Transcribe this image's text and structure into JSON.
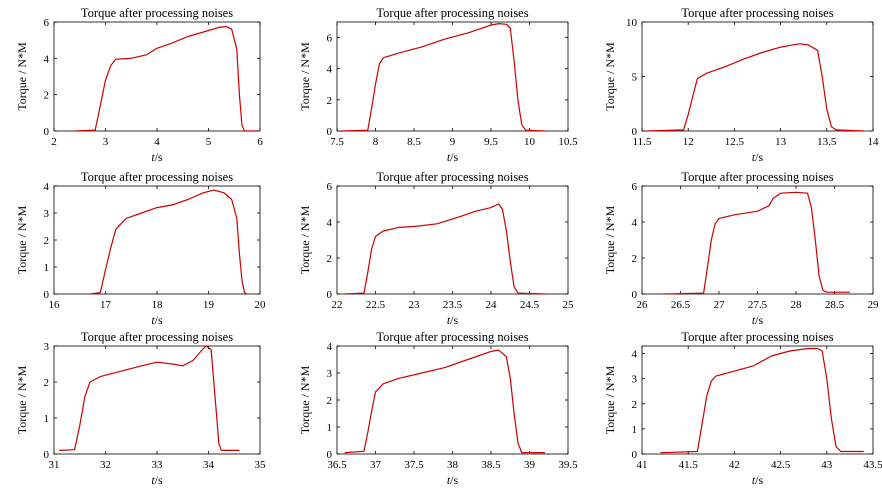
{
  "chart_data": [
    {
      "type": "line",
      "title": "Torque after processing noises",
      "xlabel_italic": "t",
      "xlabel_unit": "/s",
      "ylabel": "Torque / N*M",
      "xlim": [
        2,
        6
      ],
      "ylim": [
        0,
        6
      ],
      "xticks": [
        2,
        3,
        4,
        5,
        6
      ],
      "yticks": [
        0,
        2,
        4,
        6
      ],
      "color": "#cc0000",
      "series": [
        {
          "x": [
            2.4,
            2.8,
            2.9,
            3.0,
            3.1,
            3.2,
            3.5,
            3.8,
            4.0,
            4.3,
            4.6,
            4.9,
            5.2,
            5.35,
            5.45,
            5.55,
            5.6,
            5.65,
            5.7,
            6.0
          ],
          "y": [
            0.0,
            0.05,
            1.4,
            2.8,
            3.6,
            3.95,
            4.0,
            4.2,
            4.55,
            4.85,
            5.2,
            5.45,
            5.7,
            5.75,
            5.6,
            4.5,
            2.0,
            0.3,
            0.0,
            0.0
          ]
        }
      ]
    },
    {
      "type": "line",
      "title": "Torque after processing noises",
      "xlabel_italic": "t",
      "xlabel_unit": "/s",
      "ylabel": "Torque / N*M",
      "xlim": [
        7.5,
        10.5
      ],
      "ylim": [
        0,
        7
      ],
      "xticks": [
        7.5,
        8,
        8.5,
        9,
        9.5,
        10,
        10.5
      ],
      "yticks": [
        0,
        2,
        4,
        6
      ],
      "color": "#cc0000",
      "series": [
        {
          "x": [
            7.55,
            7.9,
            7.95,
            8.0,
            8.05,
            8.1,
            8.3,
            8.6,
            8.9,
            9.2,
            9.5,
            9.6,
            9.7,
            9.75,
            9.8,
            9.85,
            9.9,
            9.95,
            10.2
          ],
          "y": [
            0.0,
            0.05,
            1.5,
            3.0,
            4.3,
            4.7,
            5.0,
            5.4,
            5.9,
            6.3,
            6.8,
            6.9,
            6.85,
            6.6,
            4.5,
            2.0,
            0.4,
            0.05,
            0.0
          ]
        }
      ]
    },
    {
      "type": "line",
      "title": "Torque after processing noises",
      "xlabel_italic": "t",
      "xlabel_unit": "/s",
      "ylabel": "Torque / N*M",
      "xlim": [
        11.5,
        14
      ],
      "ylim": [
        0,
        10
      ],
      "xticks": [
        11.5,
        12,
        12.5,
        13,
        13.5,
        14
      ],
      "yticks": [
        0,
        5,
        10
      ],
      "color": "#cc0000",
      "series": [
        {
          "x": [
            11.55,
            11.95,
            12.0,
            12.05,
            12.1,
            12.2,
            12.4,
            12.6,
            12.8,
            13.0,
            13.2,
            13.3,
            13.4,
            13.45,
            13.5,
            13.55,
            13.6,
            13.9
          ],
          "y": [
            0.0,
            0.1,
            1.5,
            3.2,
            4.8,
            5.3,
            5.9,
            6.6,
            7.2,
            7.7,
            8.0,
            7.9,
            7.4,
            5.0,
            2.0,
            0.4,
            0.1,
            0.0
          ]
        }
      ]
    },
    {
      "type": "line",
      "title": "Torque after processing noises",
      "xlabel_italic": "t",
      "xlabel_unit": "/s",
      "ylabel": "Torque / N*M",
      "xlim": [
        16,
        20
      ],
      "ylim": [
        0,
        4
      ],
      "xticks": [
        16,
        17,
        18,
        19,
        20
      ],
      "yticks": [
        0,
        1,
        2,
        3,
        4
      ],
      "color": "#cc0000",
      "series": [
        {
          "x": [
            16.7,
            16.9,
            17.0,
            17.1,
            17.2,
            17.4,
            17.7,
            18.0,
            18.3,
            18.6,
            18.9,
            19.1,
            19.3,
            19.45,
            19.55,
            19.6,
            19.65,
            19.7,
            19.75
          ],
          "y": [
            0.0,
            0.05,
            0.9,
            1.7,
            2.4,
            2.8,
            3.0,
            3.2,
            3.3,
            3.5,
            3.75,
            3.85,
            3.75,
            3.5,
            2.8,
            1.5,
            0.5,
            0.05,
            0.0
          ]
        }
      ]
    },
    {
      "type": "line",
      "title": "Torque after processing noises",
      "xlabel_italic": "t",
      "xlabel_unit": "/s",
      "ylabel": "Torque / N*M",
      "xlim": [
        22,
        25
      ],
      "ylim": [
        0,
        6
      ],
      "xticks": [
        22,
        22.5,
        23,
        23.5,
        24,
        24.5,
        25
      ],
      "yticks": [
        0,
        2,
        4,
        6
      ],
      "color": "#cc0000",
      "series": [
        {
          "x": [
            22.1,
            22.35,
            22.4,
            22.45,
            22.5,
            22.6,
            22.8,
            23.0,
            23.3,
            23.6,
            23.8,
            24.0,
            24.1,
            24.15,
            24.2,
            24.25,
            24.3,
            24.35,
            24.7
          ],
          "y": [
            0.0,
            0.05,
            1.2,
            2.5,
            3.2,
            3.5,
            3.7,
            3.75,
            3.9,
            4.3,
            4.6,
            4.8,
            5.0,
            4.7,
            3.5,
            1.8,
            0.4,
            0.05,
            0.0
          ]
        }
      ]
    },
    {
      "type": "line",
      "title": "Torque after processing noises",
      "xlabel_italic": "t",
      "xlabel_unit": "/s",
      "ylabel": "Torque / N*M",
      "xlim": [
        26,
        29
      ],
      "ylim": [
        0,
        6
      ],
      "xticks": [
        26,
        26.5,
        27,
        27.5,
        28,
        28.5,
        29
      ],
      "yticks": [
        0,
        2,
        4,
        6
      ],
      "color": "#cc0000",
      "series": [
        {
          "x": [
            26.3,
            26.8,
            26.85,
            26.9,
            26.95,
            27.0,
            27.2,
            27.5,
            27.65,
            27.7,
            27.8,
            28.0,
            28.15,
            28.2,
            28.25,
            28.3,
            28.35,
            28.4,
            28.7
          ],
          "y": [
            0.0,
            0.05,
            1.5,
            3.0,
            3.9,
            4.2,
            4.4,
            4.6,
            4.9,
            5.3,
            5.6,
            5.65,
            5.6,
            4.8,
            3.0,
            1.0,
            0.2,
            0.1,
            0.1
          ]
        }
      ]
    },
    {
      "type": "line",
      "title": "Torque after processing noises",
      "xlabel_italic": "t",
      "xlabel_unit": "/s",
      "ylabel": "Torque / N*M",
      "xlim": [
        31,
        35
      ],
      "ylim": [
        0,
        3
      ],
      "xticks": [
        31,
        32,
        33,
        34,
        35
      ],
      "yticks": [
        0,
        1,
        2,
        3
      ],
      "color": "#cc0000",
      "series": [
        {
          "x": [
            31.1,
            31.4,
            31.5,
            31.6,
            31.7,
            31.9,
            32.3,
            32.7,
            33.0,
            33.3,
            33.5,
            33.7,
            33.85,
            33.95,
            34.05,
            34.15,
            34.2,
            34.25,
            34.6
          ],
          "y": [
            0.1,
            0.12,
            0.8,
            1.6,
            2.0,
            2.15,
            2.3,
            2.45,
            2.55,
            2.5,
            2.45,
            2.6,
            2.85,
            3.0,
            2.9,
            1.2,
            0.3,
            0.1,
            0.1
          ]
        }
      ]
    },
    {
      "type": "line",
      "title": "Torque after processing noises",
      "xlabel_italic": "t",
      "xlabel_unit": "/s",
      "ylabel": "Torque / N*M",
      "xlim": [
        36.5,
        39.5
      ],
      "ylim": [
        0,
        4
      ],
      "xticks": [
        36.5,
        37,
        37.5,
        38,
        38.5,
        39,
        39.5
      ],
      "yticks": [
        0,
        1,
        2,
        3,
        4
      ],
      "color": "#cc0000",
      "series": [
        {
          "x": [
            36.6,
            36.85,
            36.9,
            36.95,
            37.0,
            37.1,
            37.3,
            37.6,
            37.9,
            38.2,
            38.5,
            38.6,
            38.7,
            38.75,
            38.8,
            38.85,
            38.9,
            39.2
          ],
          "y": [
            0.05,
            0.1,
            0.8,
            1.6,
            2.3,
            2.6,
            2.8,
            3.0,
            3.2,
            3.5,
            3.8,
            3.85,
            3.6,
            2.8,
            1.5,
            0.4,
            0.05,
            0.05
          ]
        }
      ]
    },
    {
      "type": "line",
      "title": "Torque after processing noises",
      "xlabel_italic": "t",
      "xlabel_unit": "/s",
      "ylabel": "Torque / N*M",
      "xlim": [
        41,
        43.5
      ],
      "ylim": [
        0,
        4.3
      ],
      "xticks": [
        41,
        41.5,
        42,
        42.5,
        43,
        43.5
      ],
      "yticks": [
        0,
        1,
        2,
        3,
        4
      ],
      "color": "#cc0000",
      "series": [
        {
          "x": [
            41.2,
            41.6,
            41.65,
            41.7,
            41.75,
            41.8,
            42.0,
            42.2,
            42.4,
            42.6,
            42.8,
            42.9,
            42.95,
            43.0,
            43.05,
            43.1,
            43.15,
            43.4
          ],
          "y": [
            0.05,
            0.1,
            1.2,
            2.3,
            2.9,
            3.1,
            3.3,
            3.5,
            3.9,
            4.1,
            4.2,
            4.2,
            4.1,
            3.0,
            1.4,
            0.3,
            0.1,
            0.1
          ]
        }
      ]
    }
  ]
}
